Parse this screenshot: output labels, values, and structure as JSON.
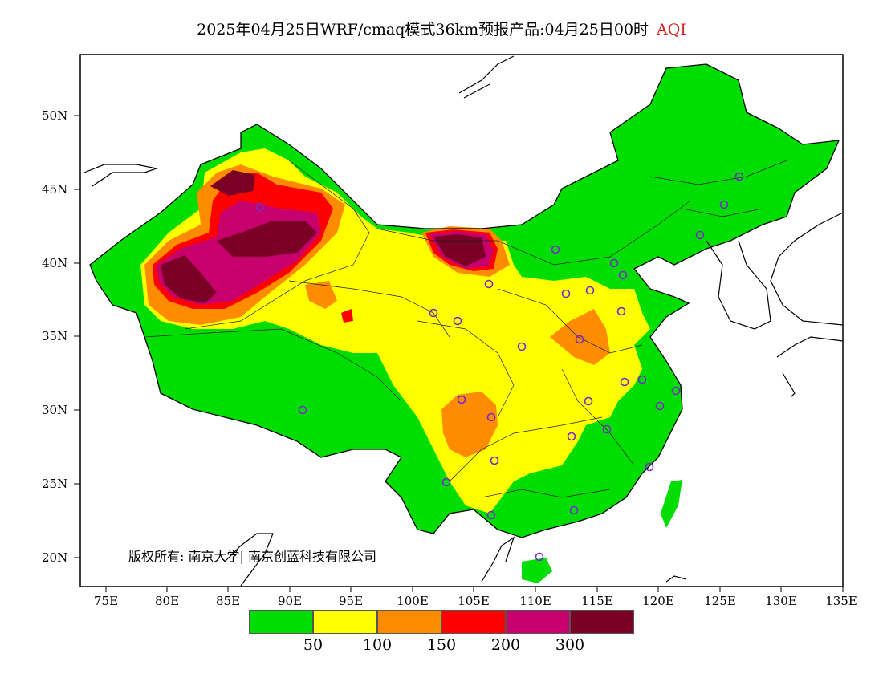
{
  "title": {
    "text": "2025年04月25日WRF/cmaq模式36km预报产品:04月25日00时",
    "variable": "AQI"
  },
  "axes": {
    "lat_labels": [
      "50N",
      "45N",
      "40N",
      "35N",
      "30N",
      "25N",
      "20N"
    ],
    "lon_labels": [
      "75E",
      "80E",
      "85E",
      "90E",
      "95E",
      "100E",
      "105E",
      "110E",
      "115E",
      "120E",
      "125E",
      "130E",
      "135E"
    ]
  },
  "legend": {
    "colors": [
      "#00dd00",
      "#ffff00",
      "#ff8c00",
      "#ff0000",
      "#c8006e",
      "#7a0026"
    ],
    "ticks": [
      "50",
      "100",
      "150",
      "200",
      "300"
    ]
  },
  "copyright": "版权所有: 南京大学| 南京创蓝科技有限公司",
  "colors": {
    "land_outside": "#ffffff",
    "station_marker": "#7a28c8",
    "title_variable": "#d81e1e"
  }
}
